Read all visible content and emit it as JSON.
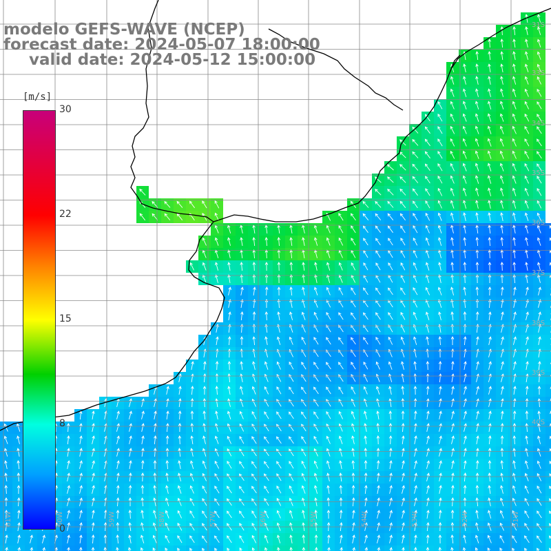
{
  "title": {
    "line1": "modelo GEFS-WAVE (NCEP)",
    "line2": "forecast date: 2024-05-07 18:00:00",
    "line3": "valid date: 2024-05-12 15:00:00"
  },
  "colorbar": {
    "unit": "[m/s]",
    "ticks": [
      "30",
      "22",
      "15",
      "8",
      "0"
    ],
    "tick_values": [
      30,
      22,
      15,
      8,
      0
    ],
    "colors": [
      "#c8007a",
      "#ff0000",
      "#ff8000",
      "#ffff00",
      "#00d000",
      "#00ffe0",
      "#00a0ff",
      "#0000ff"
    ]
  },
  "lat_labels": [
    "31S",
    "33S",
    "34S",
    "35S",
    "36S",
    "37S",
    "38S",
    "39S",
    "40S"
  ],
  "lon_labels": [
    "61W",
    "60W",
    "59W",
    "58W",
    "57W",
    "56W",
    "55W",
    "54W",
    "53W",
    "52W",
    "51W"
  ],
  "map_colors": {
    "land": "#ffffff",
    "coast": "#000000",
    "grid": "#888888",
    "arrow": "#ffffff"
  }
}
